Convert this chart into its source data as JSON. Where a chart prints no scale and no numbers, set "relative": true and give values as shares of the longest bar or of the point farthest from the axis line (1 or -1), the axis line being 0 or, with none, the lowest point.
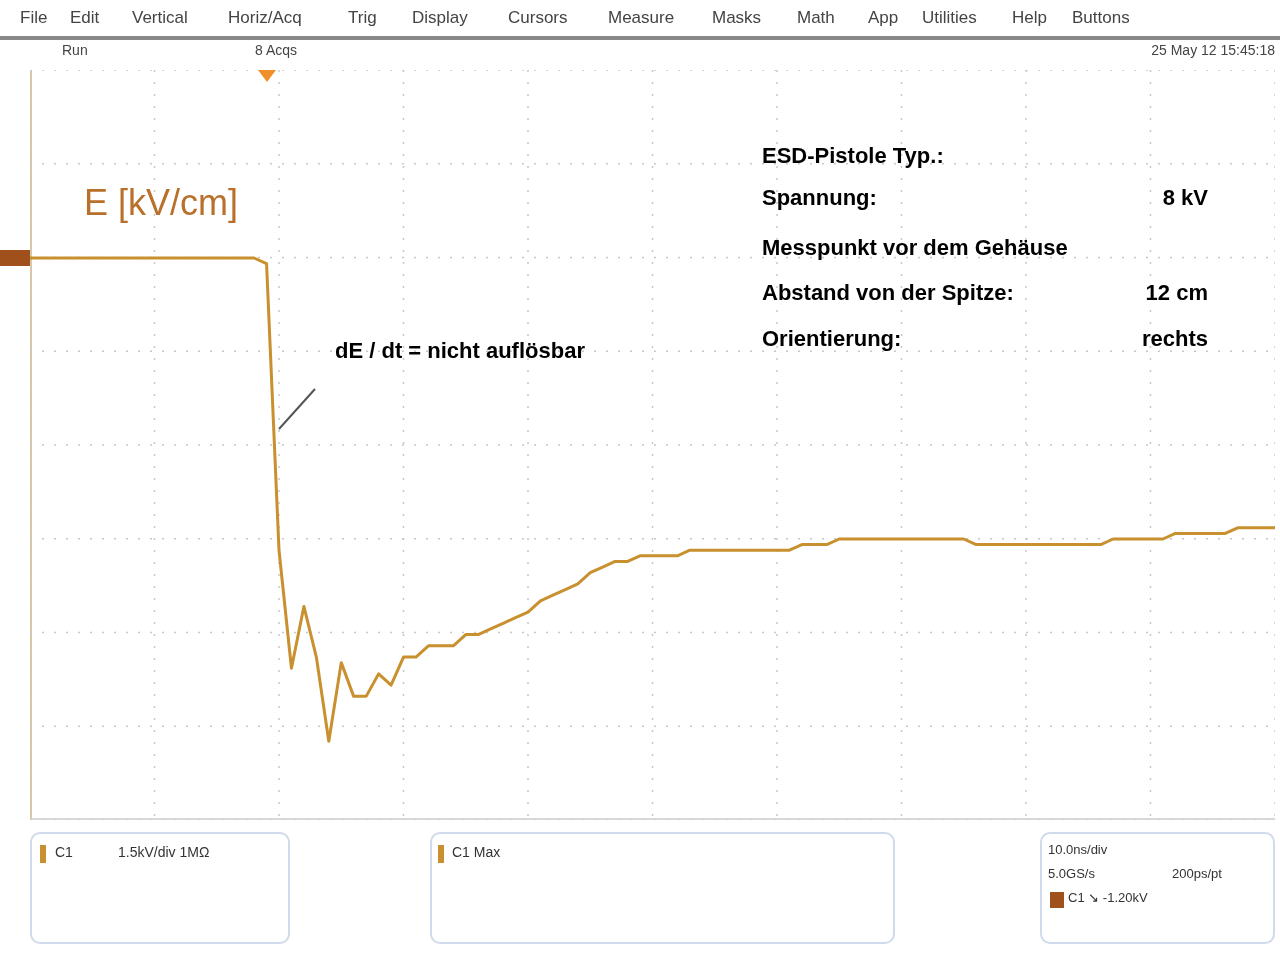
{
  "chart_data": {
    "type": "line",
    "relative": true,
    "ylabel": "E [kV/cm]",
    "grid": true,
    "marker": "none",
    "line_style": "solid",
    "categories": [
      null,
      null,
      null,
      null,
      null,
      null,
      null,
      null,
      null,
      null,
      null,
      null,
      null,
      null,
      null,
      null,
      null,
      null,
      null,
      null,
      null,
      null,
      null,
      null,
      null,
      null,
      null,
      null,
      null,
      null,
      null,
      null,
      null,
      null,
      null,
      null,
      null,
      null,
      null,
      null,
      null,
      null,
      null,
      null,
      null,
      null,
      null,
      null,
      null,
      null,
      null,
      null,
      null,
      null,
      null,
      null,
      null,
      null,
      null,
      null,
      null,
      null,
      null,
      null,
      null,
      null,
      null,
      null,
      null,
      null,
      null,
      null,
      null,
      null,
      null,
      null,
      null,
      null,
      null,
      null,
      null,
      null,
      null,
      null,
      null,
      null,
      null,
      null,
      null,
      null,
      null,
      null,
      null,
      null,
      null,
      null,
      null,
      null,
      null,
      null,
      null
    ],
    "series": [
      {
        "color": "#c8902e",
        "values": [
          1,
          1,
          1,
          1,
          1,
          1,
          1,
          1,
          1,
          1,
          1,
          1,
          1,
          1,
          1,
          1,
          1,
          1,
          1,
          0.99,
          0.48,
          0.27,
          0.38,
          0.29,
          0.14,
          0.28,
          0.22,
          0.22,
          0.26,
          0.24,
          0.29,
          0.29,
          0.31,
          0.31,
          0.31,
          0.33,
          0.33,
          0.34,
          0.35,
          0.36,
          0.37,
          0.39,
          0.4,
          0.41,
          0.42,
          0.44,
          0.45,
          0.46,
          0.46,
          0.47,
          0.47,
          0.47,
          0.47,
          0.48,
          0.48,
          0.48,
          0.48,
          0.48,
          0.48,
          0.48,
          0.48,
          0.48,
          0.49,
          0.49,
          0.49,
          0.5,
          0.5,
          0.5,
          0.5,
          0.5,
          0.5,
          0.5,
          0.5,
          0.5,
          0.5,
          0.5,
          0.49,
          0.49,
          0.49,
          0.49,
          0.49,
          0.49,
          0.49,
          0.49,
          0.49,
          0.49,
          0.49,
          0.5,
          0.5,
          0.5,
          0.5,
          0.5,
          0.51,
          0.51,
          0.51,
          0.51,
          0.51,
          0.52,
          0.52,
          0.52,
          0.52
        ]
      }
    ],
    "annotations": [
      "dE / dt = nicht auflösbar",
      "ESD-Pistole Typ.:",
      "Spannung:",
      "8 kV",
      "Messpunkt vor dem Gehäuse",
      "Abstand von der Spitze:",
      "12 cm",
      "Orientierung:",
      "rechts",
      "File",
      "Edit",
      "Vertical",
      "Horiz/Acq",
      "Trig",
      "Display",
      "Cursors",
      "Measure",
      "Masks",
      "Math",
      "App",
      "Utilities",
      "Help",
      "Buttons",
      "Run",
      "8 Acqs",
      "25 May 12 15:45:18",
      "C1",
      "1.5kV/div 1MΩ",
      "C1 Max",
      "10.0ns/div",
      "5.0GS/s",
      "200ps/pt",
      "C1 ↘ -1.20kV"
    ]
  }
}
